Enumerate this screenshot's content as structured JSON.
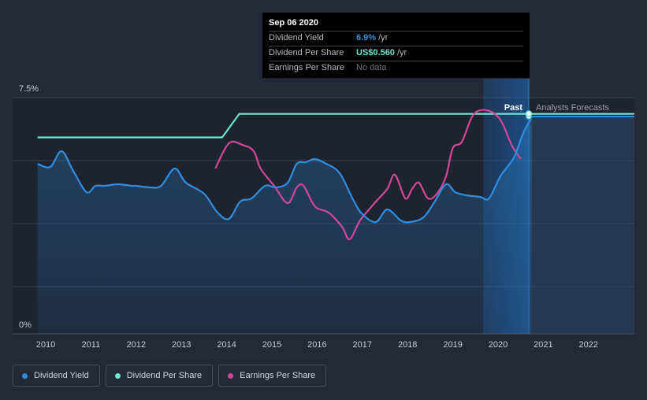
{
  "chart_data": {
    "type": "line",
    "title": "",
    "ylabel": "",
    "xlabel": "",
    "ylim": [
      0,
      7.5
    ],
    "y_tick_labels": [
      "7.5%",
      "0%"
    ],
    "x_tick_labels": [
      "2010",
      "2011",
      "2012",
      "2013",
      "2014",
      "2015",
      "2016",
      "2017",
      "2018",
      "2019",
      "2020",
      "2021",
      "2022"
    ],
    "past_label": "Past",
    "forecast_label": "Analysts Forecasts",
    "series": [
      {
        "name": "Dividend Yield",
        "color": "#2e8fe0",
        "unit": "%",
        "x": [
          2009.82,
          2010.1,
          2010.35,
          2010.6,
          2010.9,
          2011.1,
          2011.3,
          2011.6,
          2011.9,
          2012.0,
          2012.3,
          2012.55,
          2012.85,
          2013.1,
          2013.5,
          2013.8,
          2014.05,
          2014.3,
          2014.55,
          2014.85,
          2015.1,
          2015.35,
          2015.55,
          2015.75,
          2015.95,
          2016.2,
          2016.5,
          2016.8,
          2017.0,
          2017.3,
          2017.55,
          2017.85,
          2018.05,
          2018.35,
          2018.6,
          2018.85,
          2019.05,
          2019.3,
          2019.6,
          2019.8,
          2020.05,
          2020.35,
          2020.55,
          2020.75
        ],
        "y": [
          5.4,
          5.3,
          5.8,
          5.2,
          4.5,
          4.7,
          4.7,
          4.75,
          4.7,
          4.7,
          4.65,
          4.7,
          5.25,
          4.8,
          4.45,
          3.85,
          3.65,
          4.2,
          4.3,
          4.7,
          4.65,
          4.8,
          5.4,
          5.45,
          5.55,
          5.4,
          5.1,
          4.25,
          3.8,
          3.55,
          3.95,
          3.6,
          3.55,
          3.7,
          4.2,
          4.75,
          4.5,
          4.4,
          4.35,
          4.3,
          5.0,
          5.6,
          6.35,
          6.9
        ]
      },
      {
        "name": "Dividend Per Share",
        "color": "#6de3d2",
        "unit": "US$",
        "x": [
          2009.82,
          2013.9,
          2014.28,
          2022.98
        ],
        "y": [
          0.5,
          0.5,
          0.56,
          0.56
        ]
      },
      {
        "name": "Earnings Per Share",
        "color": "#d3479b",
        "unit": "",
        "x": [
          2013.75,
          2014.05,
          2014.35,
          2014.6,
          2014.75,
          2015.05,
          2015.35,
          2015.55,
          2015.7,
          2015.95,
          2016.25,
          2016.55,
          2016.72,
          2016.95,
          2017.3,
          2017.55,
          2017.72,
          2017.95,
          2018.1,
          2018.25,
          2018.45,
          2018.65,
          2018.85,
          2019.0,
          2019.2,
          2019.45,
          2019.75,
          2020.05,
          2020.3,
          2020.5
        ],
        "y": [
          5.25,
          6.05,
          6.0,
          5.8,
          5.25,
          4.7,
          4.15,
          4.65,
          4.7,
          4.05,
          3.85,
          3.4,
          3.0,
          3.6,
          4.2,
          4.6,
          5.05,
          4.3,
          4.6,
          4.8,
          4.3,
          4.45,
          5.0,
          5.9,
          6.1,
          6.95,
          7.1,
          6.8,
          6.0,
          5.55
        ]
      }
    ],
    "forecast": {
      "x": [
        2020.68,
        2022.98
      ],
      "dividend_yield": 6.9,
      "dividend_per_share": 0.56
    },
    "highlight_x": 2020.68
  },
  "tooltip": {
    "date": "Sep 06 2020",
    "rows": [
      {
        "label": "Dividend Yield",
        "value": "6.9%",
        "unit": "/yr",
        "color": "#2e8fe0"
      },
      {
        "label": "Dividend Per Share",
        "value": "US$0.560",
        "unit": "/yr",
        "color": "#6de3d2"
      },
      {
        "label": "Earnings Per Share",
        "value": "No data",
        "unit": "",
        "color": "#6f737c"
      }
    ]
  },
  "legend": [
    {
      "label": "Dividend Yield",
      "color": "#2e8fe0"
    },
    {
      "label": "Dividend Per Share",
      "color": "#6de3d2"
    },
    {
      "label": "Earnings Per Share",
      "color": "#d3479b"
    }
  ]
}
